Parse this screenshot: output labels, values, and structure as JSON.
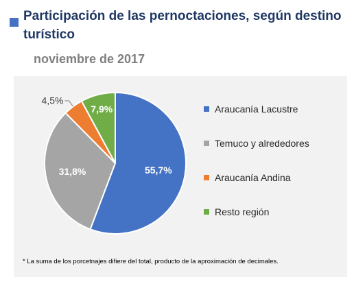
{
  "header": {
    "title": "Participación de las pernoctaciones, según destino turístico",
    "subtitle": "noviembre de 2017"
  },
  "chart_data": {
    "type": "pie",
    "title": "Participación de las pernoctaciones, según destino turístico",
    "subtitle": "noviembre de 2017",
    "categories": [
      "Araucanía Lacustre",
      "Temuco y alrededores",
      "Araucanía Andina",
      "Resto región"
    ],
    "values": [
      55.7,
      31.8,
      4.5,
      7.9
    ],
    "labels": [
      "55,7%",
      "31,8%",
      "4,5%",
      "7,9%"
    ],
    "colors": [
      "#4472C4",
      "#A5A5A5",
      "#ED7D31",
      "#70AD47"
    ],
    "legend_position": "right"
  },
  "footnote": "* La suma de los porcetnajes difiere del total, producto de la aproximación  de decimales."
}
